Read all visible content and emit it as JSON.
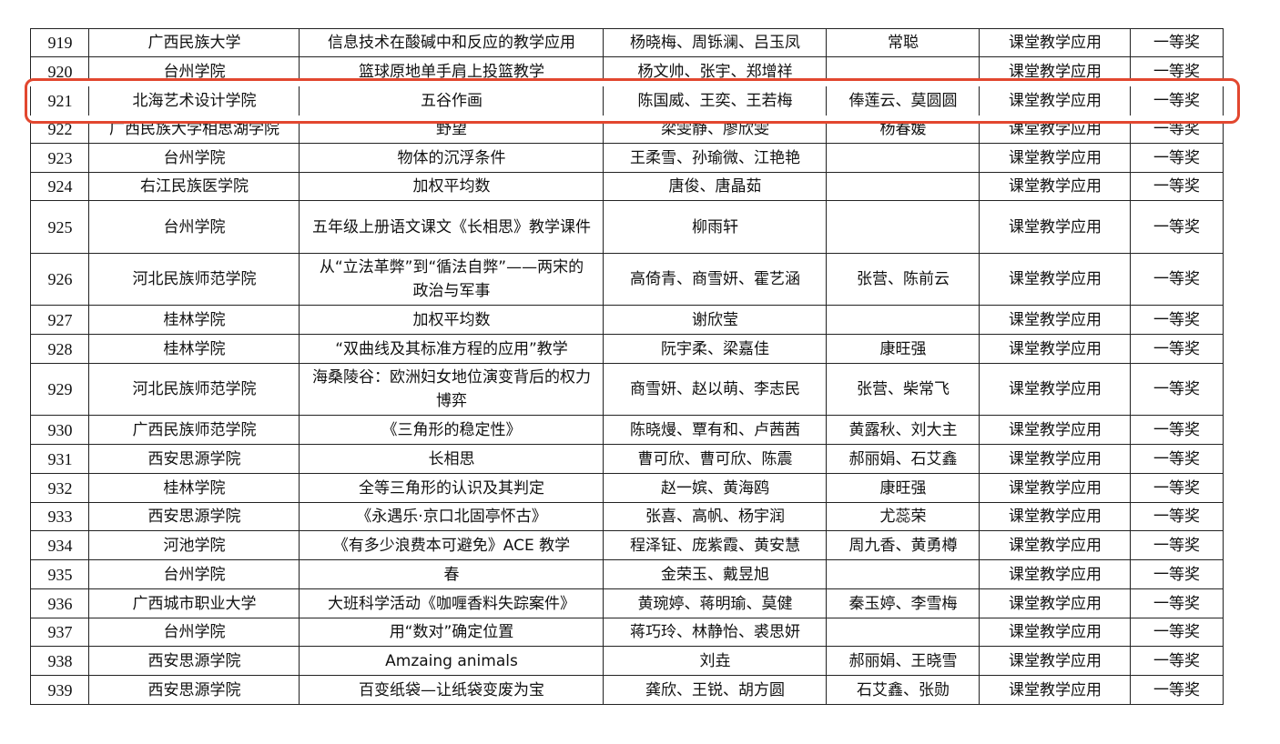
{
  "table": {
    "rows": [
      [
        "919",
        "广西民族大学",
        "信息技术在酸碱中和反应的教学应用",
        "杨晓梅、周铄澜、吕玉凤",
        "常聪",
        "课堂教学应用",
        "一等奖"
      ],
      [
        "920",
        "台州学院",
        "篮球原地单手肩上投篮教学",
        "杨文帅、张宇、郑增祥",
        null,
        "课堂教学应用",
        "一等奖"
      ],
      [
        "921",
        "北海艺术设计学院",
        "五谷作画",
        "陈国威、王奕、王若梅",
        "俸莲云、莫圆圆",
        "课堂教学应用",
        "一等奖"
      ],
      [
        "922",
        "广西民族大学相思湖学院",
        "野望",
        "梁雯静、廖欣雯",
        "杨春媛",
        "课堂教学应用",
        "一等奖"
      ],
      [
        "923",
        "台州学院",
        "物体的沉浮条件",
        "王柔雪、孙瑜微、江艳艳",
        null,
        "课堂教学应用",
        "一等奖"
      ],
      [
        "924",
        "右江民族医学院",
        "加权平均数",
        "唐俊、唐晶茹",
        null,
        "课堂教学应用",
        "一等奖"
      ],
      [
        "925",
        "台州学院",
        "五年级上册语文课文《长相思》教学课件",
        "柳雨轩",
        null,
        "课堂教学应用",
        "一等奖"
      ],
      [
        "926",
        "河北民族师范学院",
        "从“立法革弊”到“循法自弊”——两宋的政治与军事",
        "高倚青、商雪妍、霍艺涵",
        "张营、陈前云",
        "课堂教学应用",
        "一等奖"
      ],
      [
        "927",
        "桂林学院",
        "加权平均数",
        "谢欣莹",
        null,
        "课堂教学应用",
        "一等奖"
      ],
      [
        "928",
        "桂林学院",
        "“双曲线及其标准方程的应用”教学",
        "阮宇柔、梁嘉佳",
        "康旺强",
        "课堂教学应用",
        "一等奖"
      ],
      [
        "929",
        "河北民族师范学院",
        "海桑陵谷：欧洲妇女地位演变背后的权力博弈",
        "商雪妍、赵以萌、李志民",
        "张营、柴常飞",
        "课堂教学应用",
        "一等奖"
      ],
      [
        "930",
        "广西民族师范学院",
        "《三角形的稳定性》",
        "陈晓熳、覃有和、卢茜茜",
        "黄露秋、刘大主",
        "课堂教学应用",
        "一等奖"
      ],
      [
        "931",
        "西安思源学院",
        "长相思",
        "曹可欣、曹可欣、陈震",
        "郝丽娟、石艾鑫",
        "课堂教学应用",
        "一等奖"
      ],
      [
        "932",
        "桂林学院",
        "全等三角形的认识及其判定",
        "赵一嫔、黄海鸥",
        "康旺强",
        "课堂教学应用",
        "一等奖"
      ],
      [
        "933",
        "西安思源学院",
        "《永遇乐·京口北固亭怀古》",
        "张喜、高帆、杨宇润",
        "尤蕊荣",
        "课堂教学应用",
        "一等奖"
      ],
      [
        "934",
        "河池学院",
        "《有多少浪费本可避免》ACE 教学",
        "程泽钲、庞紫霞、黄安慧",
        "周九香、黄勇樽",
        "课堂教学应用",
        "一等奖"
      ],
      [
        "935",
        "台州学院",
        "春",
        "金荣玉、戴昱旭",
        null,
        "课堂教学应用",
        "一等奖"
      ],
      [
        "936",
        "广西城市职业大学",
        "大班科学活动《咖喱香料失踪案件》",
        "黄琬婷、蒋明瑜、莫健",
        "秦玉婷、李雪梅",
        "课堂教学应用",
        "一等奖"
      ],
      [
        "937",
        "台州学院",
        "用“数对”确定位置",
        "蒋巧玲、林静怡、裘思妍",
        null,
        "课堂教学应用",
        "一等奖"
      ],
      [
        "938",
        "西安思源学院",
        "Amzaing animals",
        "刘垚",
        "郝丽娟、王晓雪",
        "课堂教学应用",
        "一等奖"
      ],
      [
        "939",
        "西安思源学院",
        "百变纸袋—让纸袋变废为宝",
        "龚欣、王锐、胡方圆",
        "石艾鑫、张勋",
        "课堂教学应用",
        "一等奖"
      ]
    ]
  }
}
